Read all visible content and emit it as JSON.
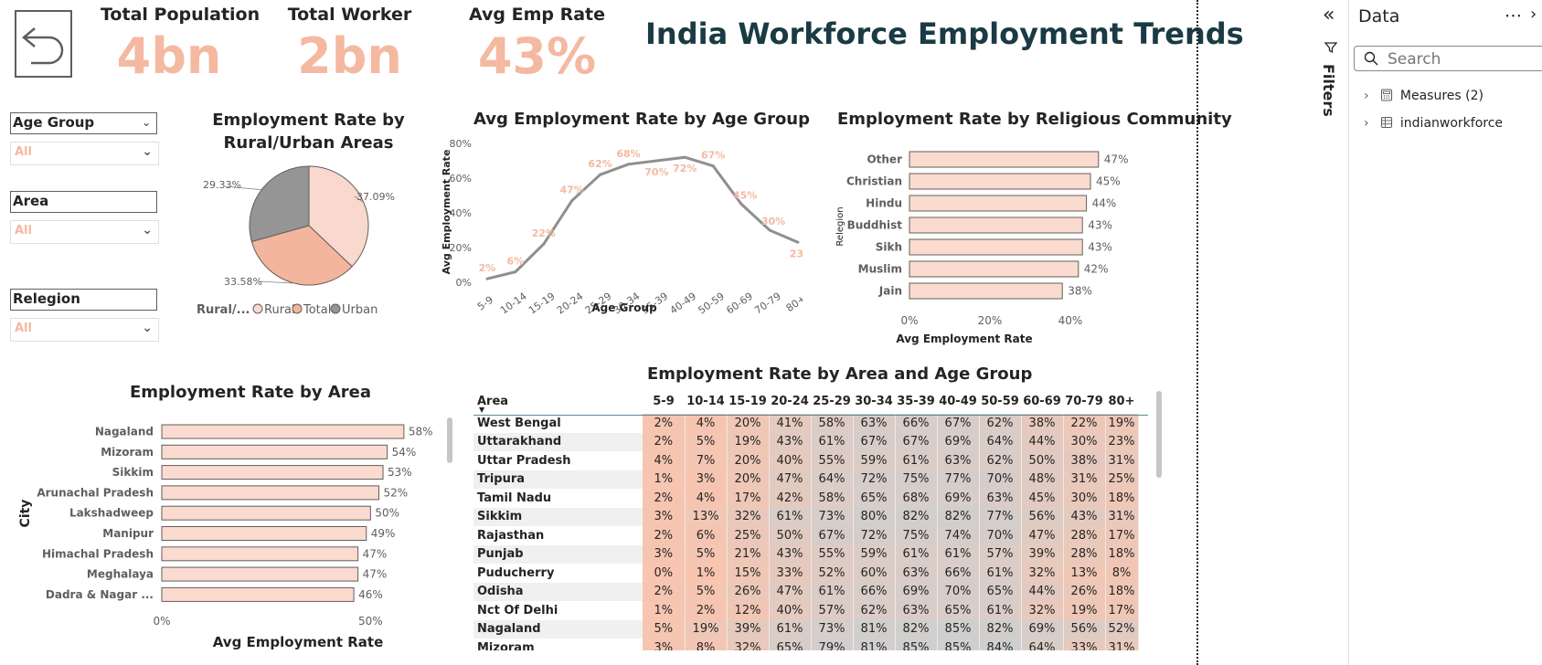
{
  "header": {
    "title": "India Workforce Employment Trends",
    "kpis": [
      {
        "label": "Total Population",
        "value": "4bn"
      },
      {
        "label": "Total Worker",
        "value": "2bn"
      },
      {
        "label": "Avg Emp Rate",
        "value": "43%"
      }
    ]
  },
  "slicers": [
    {
      "label": "Age Group",
      "value": "All"
    },
    {
      "label": "Area",
      "value": "All"
    },
    {
      "label": "Relegion",
      "value": "All"
    }
  ],
  "pie": {
    "title_line1": "Employment Rate by",
    "title_line2": "Rural/Urban Areas",
    "legend_title": "Rural/...",
    "slices": [
      {
        "name": "Rural",
        "value": 37.09,
        "label": "37.09%",
        "color": "#f9d9cd"
      },
      {
        "name": "Total",
        "value": 33.58,
        "label": "33.58%",
        "color": "#f3b59d"
      },
      {
        "name": "Urban",
        "value": 29.33,
        "label": "29.33%",
        "color": "#959595"
      }
    ]
  },
  "chart_data": [
    {
      "type": "line",
      "title": "Avg Employment Rate by Age Group",
      "xlabel": "Age Group",
      "ylabel": "Avg Employment Rate",
      "categories": [
        "5-9",
        "10-14",
        "15-19",
        "20-24",
        "25-29",
        "30-34",
        "35-39",
        "40-49",
        "50-59",
        "60-69",
        "70-79",
        "80+"
      ],
      "values": [
        2,
        6,
        22,
        47,
        62,
        68,
        70,
        72,
        67,
        45,
        30,
        23
      ],
      "labels": [
        "2%",
        "6%",
        "22%",
        "47%",
        "62%",
        "68%",
        "70%",
        "72%",
        "67%",
        "45%",
        "30%",
        "23%"
      ],
      "yticks": [
        "0%",
        "20%",
        "40%",
        "60%",
        "80%"
      ],
      "ylim": [
        0,
        80
      ]
    },
    {
      "type": "bar",
      "title": "Employment Rate by Religious Community",
      "xlabel": "Avg Employment Rate",
      "ylabel": "Relegion",
      "categories": [
        "Other",
        "Christian",
        "Hindu",
        "Buddhist",
        "Sikh",
        "Muslim",
        "Jain"
      ],
      "values": [
        47,
        45,
        44,
        43,
        43,
        42,
        38
      ],
      "labels": [
        "47%",
        "45%",
        "44%",
        "43%",
        "43%",
        "42%",
        "38%"
      ],
      "xticks": [
        "0%",
        "20%",
        "40%"
      ],
      "xlim": [
        0,
        50
      ]
    },
    {
      "type": "bar",
      "title": "Employment Rate by Area",
      "xlabel": "Avg Employment Rate",
      "ylabel": "City",
      "categories": [
        "Nagaland",
        "Mizoram",
        "Sikkim",
        "Arunachal Pradesh",
        "Lakshadweep",
        "Manipur",
        "Himachal Pradesh",
        "Meghalaya",
        "Dadra & Nagar ..."
      ],
      "values": [
        58,
        54,
        53,
        52,
        50,
        49,
        47,
        47,
        46
      ],
      "labels": [
        "58%",
        "54%",
        "53%",
        "52%",
        "50%",
        "49%",
        "47%",
        "47%",
        "46%"
      ],
      "xticks": [
        "0%",
        "50%"
      ],
      "xlim": [
        0,
        60
      ]
    },
    {
      "type": "table",
      "title": "Employment Rate by Area and Age Group",
      "row_header": "Area",
      "columns": [
        "5-9",
        "10-14",
        "15-19",
        "20-24",
        "25-29",
        "30-34",
        "35-39",
        "40-49",
        "50-59",
        "60-69",
        "70-79",
        "80+"
      ],
      "rows": [
        {
          "area": "West Bengal",
          "values": [
            2,
            4,
            20,
            41,
            58,
            63,
            66,
            67,
            62,
            38,
            22,
            19
          ]
        },
        {
          "area": "Uttarakhand",
          "values": [
            2,
            5,
            19,
            43,
            61,
            67,
            67,
            69,
            64,
            44,
            30,
            23
          ]
        },
        {
          "area": "Uttar Pradesh",
          "values": [
            4,
            7,
            20,
            40,
            55,
            59,
            61,
            63,
            62,
            50,
            38,
            31
          ]
        },
        {
          "area": "Tripura",
          "values": [
            1,
            3,
            20,
            47,
            64,
            72,
            75,
            77,
            70,
            48,
            31,
            25
          ]
        },
        {
          "area": "Tamil Nadu",
          "values": [
            2,
            4,
            17,
            42,
            58,
            65,
            68,
            69,
            63,
            45,
            30,
            18
          ]
        },
        {
          "area": "Sikkim",
          "values": [
            3,
            13,
            32,
            61,
            73,
            80,
            82,
            82,
            77,
            56,
            43,
            31
          ]
        },
        {
          "area": "Rajasthan",
          "values": [
            2,
            6,
            25,
            50,
            67,
            72,
            75,
            74,
            70,
            47,
            28,
            17
          ]
        },
        {
          "area": "Punjab",
          "values": [
            3,
            5,
            21,
            43,
            55,
            59,
            61,
            61,
            57,
            39,
            28,
            18
          ]
        },
        {
          "area": "Puducherry",
          "values": [
            0,
            1,
            15,
            33,
            52,
            60,
            63,
            66,
            61,
            32,
            13,
            8
          ]
        },
        {
          "area": "Odisha",
          "values": [
            2,
            5,
            26,
            47,
            61,
            66,
            69,
            70,
            65,
            44,
            26,
            18
          ]
        },
        {
          "area": "Nct Of Delhi",
          "values": [
            1,
            2,
            12,
            40,
            57,
            62,
            63,
            65,
            61,
            32,
            19,
            17
          ]
        },
        {
          "area": "Nagaland",
          "values": [
            5,
            19,
            39,
            61,
            73,
            81,
            82,
            85,
            82,
            69,
            56,
            52
          ]
        },
        {
          "area": "Mizoram",
          "values": [
            3,
            8,
            32,
            65,
            79,
            81,
            85,
            85,
            84,
            64,
            33,
            31
          ]
        }
      ]
    }
  ],
  "data_pane": {
    "title": "Data",
    "more": "⋯",
    "search_placeholder": "Search",
    "filters_label": "Filters",
    "items": [
      "Measures (2)",
      "indianworkforce"
    ]
  }
}
